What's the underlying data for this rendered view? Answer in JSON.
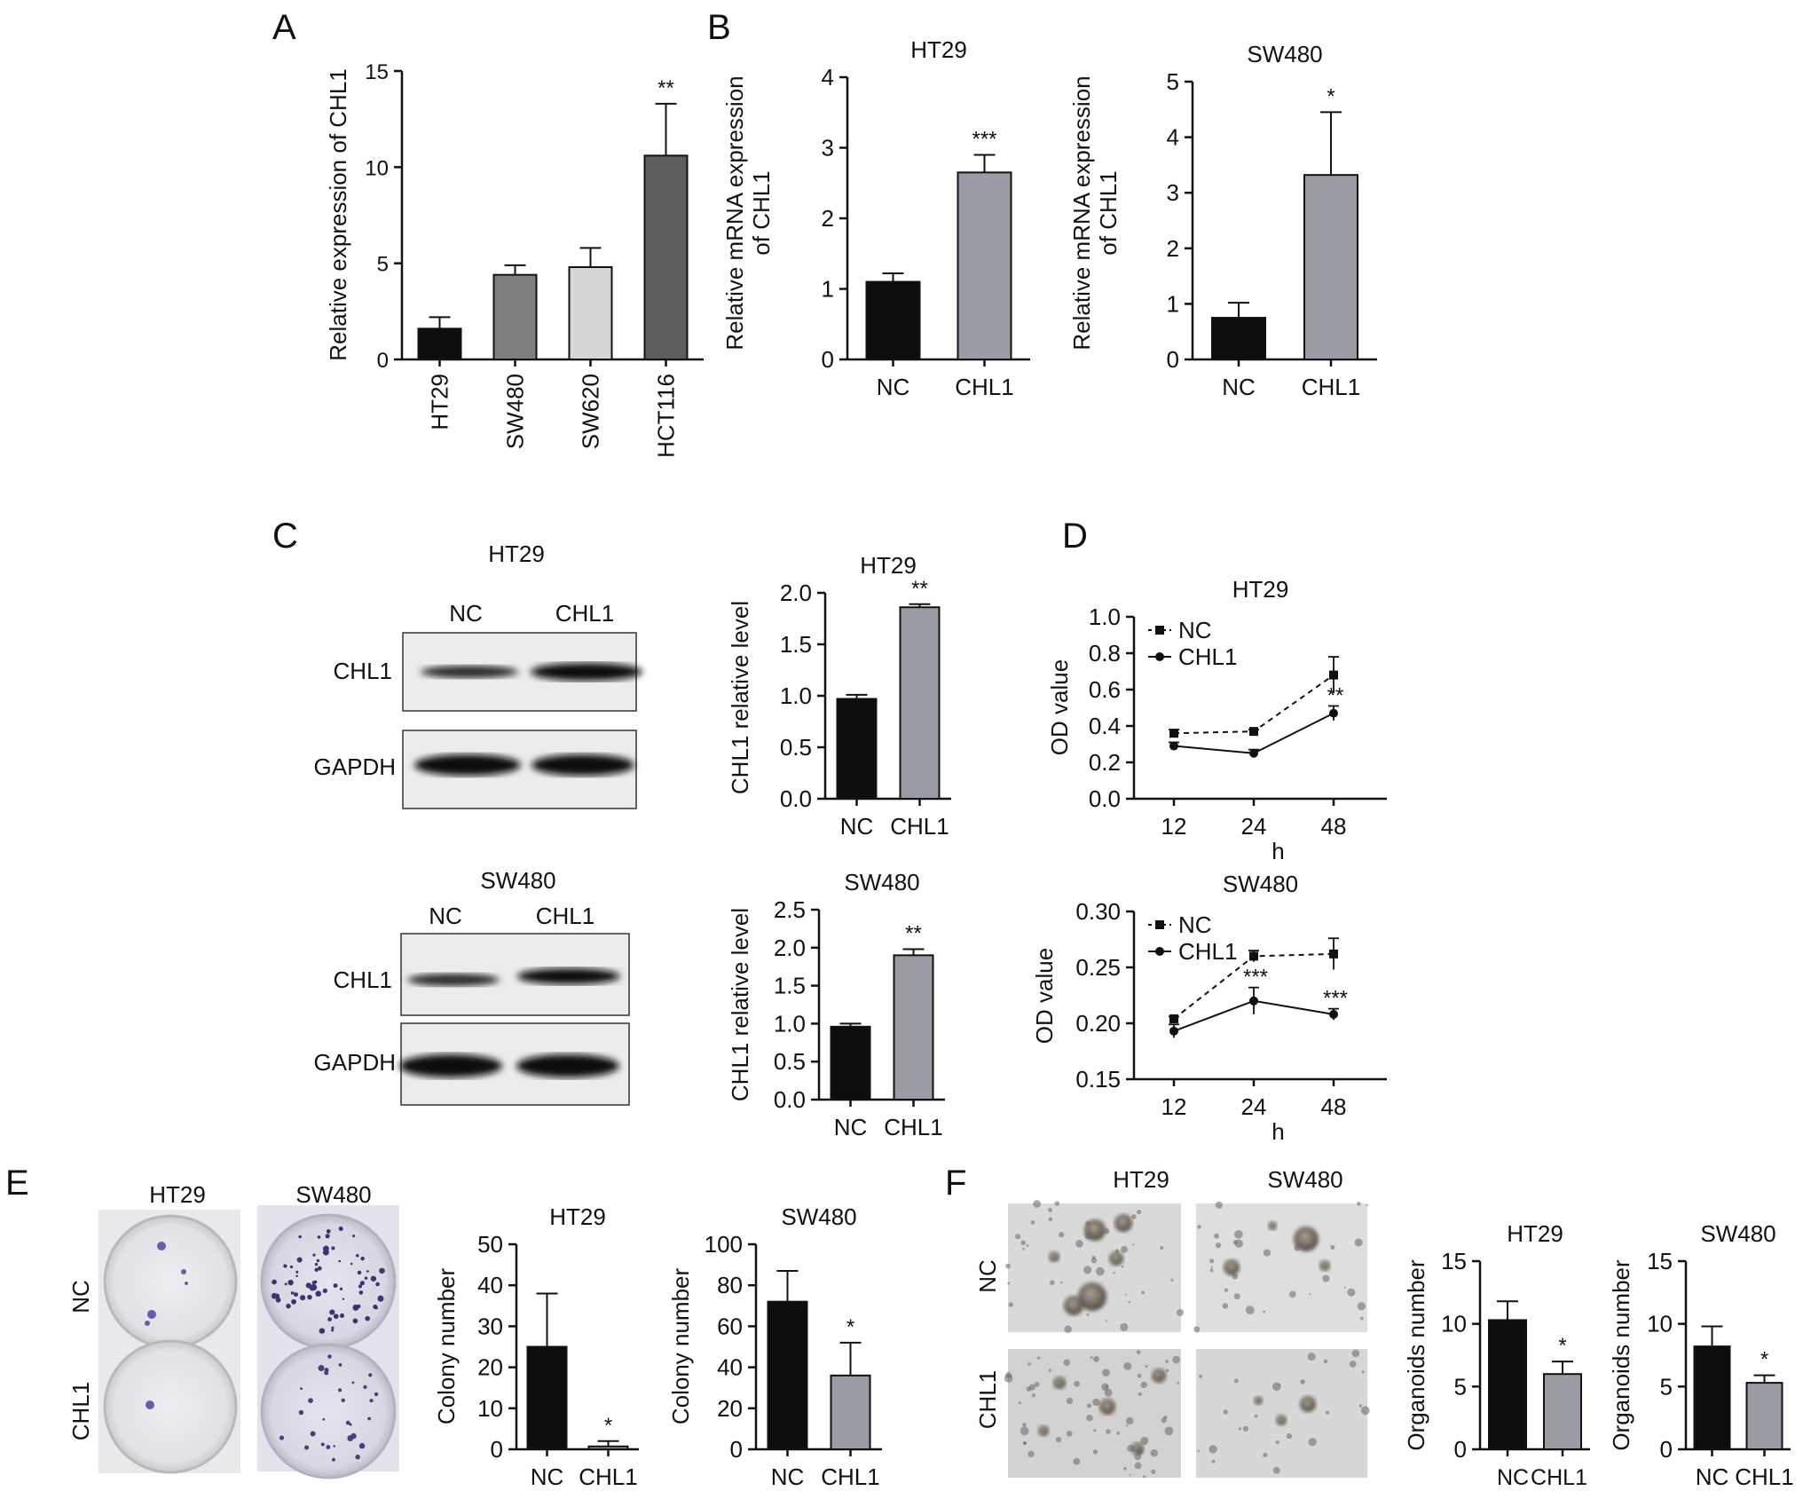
{
  "panel_labels": [
    "A",
    "B",
    "C",
    "D",
    "E",
    "F"
  ],
  "colors": {
    "black": "#0d0d0d",
    "gray": "#9b9ba3",
    "dark_gray": "#5e5e5e",
    "mid_gray": "#7f7f7f",
    "light_gray": "#d6d6d6",
    "axis": "#111111"
  },
  "blots": {
    "ht29": {
      "title": "HT29",
      "lanes": [
        "NC",
        "CHL1"
      ],
      "rows": [
        "CHL1",
        "GAPDH"
      ]
    },
    "sw480": {
      "title": "SW480",
      "lanes": [
        "NC",
        "CHL1"
      ],
      "rows": [
        "CHL1",
        "GAPDH"
      ]
    }
  },
  "colony_images": {
    "columns": [
      "HT29",
      "SW480"
    ],
    "rows": [
      "NC",
      "CHL1"
    ]
  },
  "organoid_images": {
    "columns": [
      "HT29",
      "SW480"
    ],
    "rows": [
      "NC",
      "CHL1"
    ]
  },
  "chart_data": [
    {
      "id": "A",
      "type": "bar",
      "title": "",
      "ylabel": [
        "Relative expression of CHL1"
      ],
      "xlabel": "",
      "categories": [
        "HT29",
        "SW480",
        "SW620",
        "HCT116"
      ],
      "values": [
        1.6,
        4.4,
        4.8,
        10.6
      ],
      "errors": [
        0.6,
        0.5,
        1.0,
        2.7
      ],
      "colors": [
        "#0d0d0d",
        "#7f7f7f",
        "#d6d6d6",
        "#5e5e5e"
      ],
      "annotations": [
        "",
        "",
        "",
        "**"
      ],
      "ylim": [
        0,
        15
      ],
      "yticks": [
        0,
        5,
        10,
        15
      ],
      "rotate_labels": true
    },
    {
      "id": "B1",
      "type": "bar",
      "title": "HT29",
      "ylabel": [
        "Relative mRNA expression",
        "of CHL1"
      ],
      "xlabel": "",
      "categories": [
        "NC",
        "CHL1"
      ],
      "values": [
        1.1,
        2.65
      ],
      "errors": [
        0.12,
        0.25
      ],
      "colors": [
        "#0d0d0d",
        "#9b9ba3"
      ],
      "annotations": [
        "",
        "***"
      ],
      "ylim": [
        0,
        4
      ],
      "yticks": [
        0,
        1,
        2,
        3,
        4
      ]
    },
    {
      "id": "B2",
      "type": "bar",
      "title": "SW480",
      "ylabel": [
        "Relative mRNA expression",
        "of CHL1"
      ],
      "xlabel": "",
      "categories": [
        "NC",
        "CHL1"
      ],
      "values": [
        0.75,
        3.32
      ],
      "errors": [
        0.27,
        1.13
      ],
      "colors": [
        "#0d0d0d",
        "#9b9ba3"
      ],
      "annotations": [
        "",
        "*"
      ],
      "ylim": [
        0,
        5
      ],
      "yticks": [
        0,
        1,
        2,
        3,
        4,
        5
      ]
    },
    {
      "id": "C1",
      "type": "bar",
      "title": "HT29",
      "ylabel": [
        "CHL1 relative level"
      ],
      "xlabel": "",
      "categories": [
        "NC",
        "CHL1"
      ],
      "values": [
        0.97,
        1.86
      ],
      "errors": [
        0.04,
        0.03
      ],
      "colors": [
        "#0d0d0d",
        "#9b9ba3"
      ],
      "annotations": [
        "",
        "**"
      ],
      "ylim": [
        0,
        2.0
      ],
      "yticks": [
        "0.0",
        "0.5",
        "1.0",
        "1.5",
        "2.0"
      ]
    },
    {
      "id": "C2",
      "type": "bar",
      "title": "SW480",
      "ylabel": [
        "CHL1 relative level"
      ],
      "xlabel": "",
      "categories": [
        "NC",
        "CHL1"
      ],
      "values": [
        0.96,
        1.9
      ],
      "errors": [
        0.04,
        0.08
      ],
      "colors": [
        "#0d0d0d",
        "#9b9ba3"
      ],
      "annotations": [
        "",
        "**"
      ],
      "ylim": [
        0,
        2.5
      ],
      "yticks": [
        "0.0",
        "0.5",
        "1.0",
        "1.5",
        "2.0",
        "2.5"
      ]
    },
    {
      "id": "D1",
      "type": "line",
      "title": "HT29",
      "ylabel": [
        "OD value"
      ],
      "xlabel": "h",
      "x": [
        "12",
        "24",
        "48"
      ],
      "series": [
        {
          "name": "NC",
          "marker": "square",
          "dashed": true,
          "values": [
            0.36,
            0.37,
            0.68
          ],
          "errors": [
            0.02,
            0.01,
            0.1
          ],
          "annotations": [
            "",
            "",
            ""
          ]
        },
        {
          "name": "CHL1",
          "marker": "circle",
          "dashed": false,
          "values": [
            0.29,
            0.25,
            0.47
          ],
          "errors": [
            0.02,
            0.02,
            0.04
          ],
          "annotations": [
            "",
            "",
            "**"
          ]
        }
      ],
      "ylim": [
        0,
        1.0
      ],
      "yticks": [
        "0.0",
        "0.2",
        "0.4",
        "0.6",
        "0.8",
        "1.0"
      ],
      "legend": "top-left"
    },
    {
      "id": "D2",
      "type": "line",
      "title": "SW480",
      "ylabel": [
        "OD value"
      ],
      "xlabel": "h",
      "x": [
        "12",
        "24",
        "48"
      ],
      "series": [
        {
          "name": "NC",
          "marker": "square",
          "dashed": true,
          "values": [
            0.204,
            0.26,
            0.262
          ],
          "errors": [
            0.002,
            0.005,
            0.014
          ],
          "annotations": [
            "",
            "",
            ""
          ]
        },
        {
          "name": "CHL1",
          "marker": "circle",
          "dashed": false,
          "values": [
            0.193,
            0.22,
            0.208
          ],
          "errors": [
            0.006,
            0.012,
            0.005
          ],
          "annotations": [
            "",
            "***",
            "***"
          ]
        }
      ],
      "ylim": [
        0.15,
        0.3
      ],
      "yticks": [
        "0.15",
        "0.20",
        "0.25",
        "0.30"
      ],
      "legend": "top-left"
    },
    {
      "id": "E1",
      "type": "bar",
      "title": "HT29",
      "ylabel": [
        "Colony number"
      ],
      "xlabel": "",
      "categories": [
        "NC",
        "CHL1"
      ],
      "values": [
        25,
        0.7
      ],
      "errors": [
        13,
        1.3
      ],
      "colors": [
        "#0d0d0d",
        "#9b9ba3"
      ],
      "annotations": [
        "",
        "*"
      ],
      "ylim": [
        0,
        50
      ],
      "yticks": [
        0,
        10,
        20,
        30,
        40,
        50
      ]
    },
    {
      "id": "E2",
      "type": "bar",
      "title": "SW480",
      "ylabel": [
        "Colony number"
      ],
      "xlabel": "",
      "categories": [
        "NC",
        "CHL1"
      ],
      "values": [
        72,
        36
      ],
      "errors": [
        15,
        16
      ],
      "colors": [
        "#0d0d0d",
        "#9b9ba3"
      ],
      "annotations": [
        "",
        "*"
      ],
      "ylim": [
        0,
        100
      ],
      "yticks": [
        0,
        20,
        40,
        60,
        80,
        100
      ]
    },
    {
      "id": "F1",
      "type": "bar",
      "title": "HT29",
      "ylabel": [
        "Organoids number"
      ],
      "xlabel": "",
      "categories": [
        "NC",
        "CHL1"
      ],
      "values": [
        10.3,
        6.0
      ],
      "errors": [
        1.5,
        1.0
      ],
      "colors": [
        "#0d0d0d",
        "#9b9ba3"
      ],
      "annotations": [
        "",
        "*"
      ],
      "ylim": [
        0,
        15
      ],
      "yticks": [
        0,
        5,
        10,
        15
      ],
      "tight_labels": true
    },
    {
      "id": "F2",
      "type": "bar",
      "title": "SW480",
      "ylabel": [
        "Organoids number"
      ],
      "xlabel": "",
      "categories": [
        "NC",
        "CHL1"
      ],
      "values": [
        8.2,
        5.3
      ],
      "errors": [
        1.6,
        0.6
      ],
      "colors": [
        "#0d0d0d",
        "#9b9ba3"
      ],
      "annotations": [
        "",
        "*"
      ],
      "ylim": [
        0,
        15
      ],
      "yticks": [
        0,
        5,
        10,
        15
      ]
    }
  ]
}
